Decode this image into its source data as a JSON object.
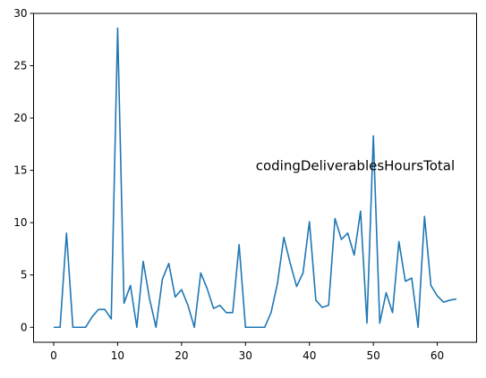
{
  "chart_data": {
    "type": "line",
    "title": "",
    "xlabel": "",
    "ylabel": "",
    "xlim": [
      -3.15,
      66.15
    ],
    "ylim": [
      -1.43,
      30
    ],
    "xticks": [
      0,
      10,
      20,
      30,
      40,
      50,
      60
    ],
    "yticks": [
      0,
      5,
      10,
      15,
      20,
      25,
      30
    ],
    "grid": false,
    "legend": "none",
    "line_color": "#1f77b4",
    "annotation": {
      "text": "codingDeliverablesHoursTotal",
      "x": 31.6,
      "y": 15
    },
    "series": [
      {
        "x": [
          0,
          1,
          2,
          3,
          4,
          5,
          6,
          7,
          8,
          9,
          10,
          11,
          12,
          13,
          14,
          15,
          16,
          17,
          18,
          19,
          20,
          21,
          22,
          23,
          24,
          25,
          26,
          27,
          28,
          29,
          30,
          31,
          32,
          33,
          34,
          35,
          36,
          37,
          38,
          39,
          40,
          41,
          42,
          43,
          44,
          45,
          46,
          47,
          48,
          49,
          50,
          51,
          52,
          53,
          54,
          55,
          56,
          57,
          58,
          59,
          60,
          61,
          62,
          63
        ],
        "values": [
          0,
          0,
          9.0,
          0,
          0,
          0,
          1.0,
          1.7,
          1.7,
          0.8,
          28.6,
          2.3,
          4.0,
          0,
          6.3,
          2.7,
          0,
          4.6,
          6.1,
          2.9,
          3.6,
          2.1,
          0,
          5.2,
          3.7,
          1.8,
          2.1,
          1.4,
          1.4,
          7.9,
          0,
          0,
          0,
          0,
          1.4,
          4.2,
          8.6,
          6.1,
          3.9,
          5.2,
          10.1,
          2.6,
          1.9,
          2.1,
          10.4,
          8.4,
          9.0,
          6.9,
          11.1,
          0.4,
          18.3,
          0.4,
          3.3,
          1.4,
          8.2,
          4.4,
          4.7,
          0,
          10.6,
          4.0,
          3.0,
          2.4,
          2.6,
          2.7
        ]
      }
    ]
  }
}
